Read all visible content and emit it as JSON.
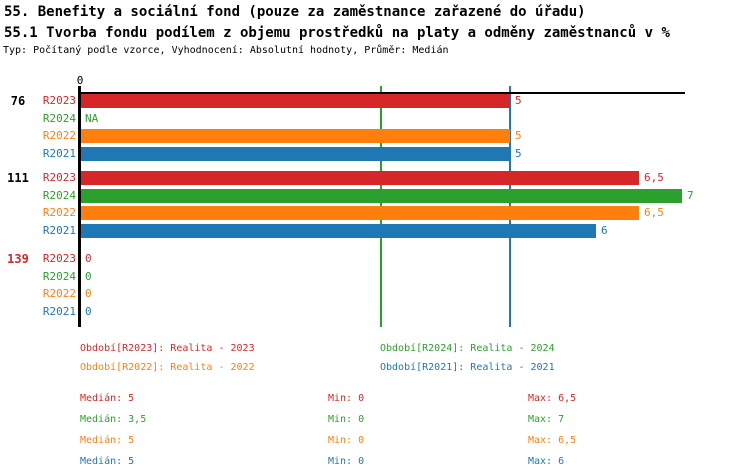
{
  "header": {
    "title_line1": "55. Benefity a sociální fond (pouze za zaměstnance zařazené do úřadu)",
    "title_line2": "55.1 Tvorba fondu podílem z objemu prostředků na platy a odměny zaměstnanců v %",
    "meta_line": "Typ: Počítaný podle vzorce, Vyhodnocení: Absolutní hodnoty, Průměr: Medián"
  },
  "chart_data": {
    "type": "bar",
    "orientation": "horizontal",
    "value_axis": {
      "min": 0,
      "max": 7,
      "zero_tick_label": "0"
    },
    "grid": "off",
    "legend_position": "bottom",
    "series": [
      {
        "id": "R2023",
        "label": "R2023",
        "color": "#d62728"
      },
      {
        "id": "R2024",
        "label": "R2024",
        "color": "#2ca02c"
      },
      {
        "id": "R2022",
        "label": "R2022",
        "color": "#ff7f0e"
      },
      {
        "id": "R2021",
        "label": "R2021",
        "color": "#1f77b4"
      }
    ],
    "groups": [
      {
        "label": "76",
        "label_color": "#000000",
        "values": [
          5,
          null,
          5,
          5
        ],
        "value_labels": [
          "5",
          "NA",
          "5",
          "5"
        ]
      },
      {
        "label": "111",
        "label_color": "#000000",
        "values": [
          6.5,
          7,
          6.5,
          6
        ],
        "value_labels": [
          "6,5",
          "7",
          "6,5",
          "6"
        ]
      },
      {
        "label": "139",
        "label_color": "#d62728",
        "values": [
          0,
          0,
          0,
          0
        ],
        "value_labels": [
          "0",
          "0",
          "0",
          "0"
        ]
      }
    ],
    "median_lines": [
      {
        "series": "R2023",
        "value": 5,
        "color": "#d62728"
      },
      {
        "series": "R2024",
        "value": 3.5,
        "color": "#2ca02c"
      },
      {
        "series": "R2022",
        "value": 5,
        "color": "#ff7f0e"
      },
      {
        "series": "R2021",
        "value": 5,
        "color": "#1f77b4"
      }
    ]
  },
  "legend": {
    "items": [
      {
        "series": "R2023",
        "text": "Období[R2023]: Realita - 2023",
        "color": "#d62728"
      },
      {
        "series": "R2024",
        "text": "Období[R2024]: Realita - 2024",
        "color": "#2ca02c"
      },
      {
        "series": "R2022",
        "text": "Období[R2022]: Realita - 2022",
        "color": "#ff7f0e"
      },
      {
        "series": "R2021",
        "text": "Období[R2021]: Realita - 2021",
        "color": "#1f77b4"
      }
    ]
  },
  "stats": {
    "rows": [
      {
        "series": "R2023",
        "color": "#d62728",
        "median": "Medián: 5",
        "min": "Min: 0",
        "max": "Max: 6,5"
      },
      {
        "series": "R2024",
        "color": "#2ca02c",
        "median": "Medián: 3,5",
        "min": "Min: 0",
        "max": "Max: 7"
      },
      {
        "series": "R2022",
        "color": "#ff7f0e",
        "median": "Medián: 5",
        "min": "Min: 0",
        "max": "Max: 6,5"
      },
      {
        "series": "R2021",
        "color": "#1f77b4",
        "median": "Medián: 5",
        "min": "Min: 0",
        "max": "Max: 6"
      }
    ]
  },
  "colors": {
    "axis": "#000000",
    "background": "#ffffff"
  }
}
